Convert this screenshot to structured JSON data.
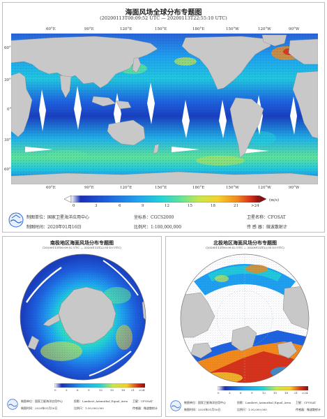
{
  "global": {
    "title": "海面风场全球分布专题图",
    "time_range": "(20200113T00:09:52 UTC — 20200113T22:55:10 UTC)",
    "lon_labels": [
      "60°E",
      "90°E",
      "120°E",
      "150°E",
      "180°E",
      "150°W",
      "120°W",
      "90°W",
      "60°W"
    ],
    "lat_labels": [
      "60°N",
      "30°N",
      "0°",
      "30°S",
      "60°S"
    ],
    "colorbar_ticks": [
      "0",
      "3",
      "6",
      "9",
      "12",
      "15",
      "18",
      "21",
      ">24"
    ],
    "colorbar_unit": "(m/s)",
    "org_label": "制图单位：国家卫星海洋应用中心",
    "date_label": "制图时间：2020年01月16日",
    "crs_label": "坐标系：CGCS2000",
    "scale_label": "比例尺：1:100,000,000",
    "sat_label": "卫星名称：CFOSAT",
    "sensor_label": "传 感 器：微波散射计"
  },
  "south": {
    "title": "南极地区海面风场分布专题图",
    "time_range": "(20200113T00:09:52 UTC — 20200113T22:55:10 UTC)",
    "colorbar_ticks": [
      "0",
      "3",
      "6",
      "9",
      "12",
      "15",
      "18",
      "21",
      ">24"
    ],
    "org_label": "制图单位：国家卫星海洋应用中心",
    "proj_label": "投影：Lambert_Azimuthal_Equal_Area",
    "sat_label": "卫星：CFOSAT",
    "date_label": "制图时间：2020年01月16日",
    "scale_label": "比例尺：1:30,000,000",
    "sensor_label": "传感器：微波散射计"
  },
  "north": {
    "title": "北极地区海面风场分布专题图",
    "time_range": "(20200113T00:09:52 UTC — 20200113T22:55:10 UTC)",
    "colorbar_ticks": [
      "0",
      "3",
      "6",
      "9",
      "12",
      "15",
      "18",
      "21",
      ">24"
    ],
    "org_label": "制图单位：国家卫星海洋应用中心",
    "proj_label": "投影：Lambert_Azimuthal_Equal_Area",
    "sat_label": "卫星：CFOSAT",
    "date_label": "制图时间：2020年01月16日",
    "scale_label": "比例尺：1:30,000,000",
    "sensor_label": "传感器：微波散射计"
  },
  "colors": {
    "land": "#c8c8c8",
    "ocean_gap": "#ffffff",
    "palette": [
      "#1a2fb8",
      "#1e63e0",
      "#1fa0f0",
      "#22d3d8",
      "#5fe39a",
      "#c9e74a",
      "#f7d02a",
      "#f48a1c",
      "#d8331a",
      "#8b0d0d"
    ]
  }
}
